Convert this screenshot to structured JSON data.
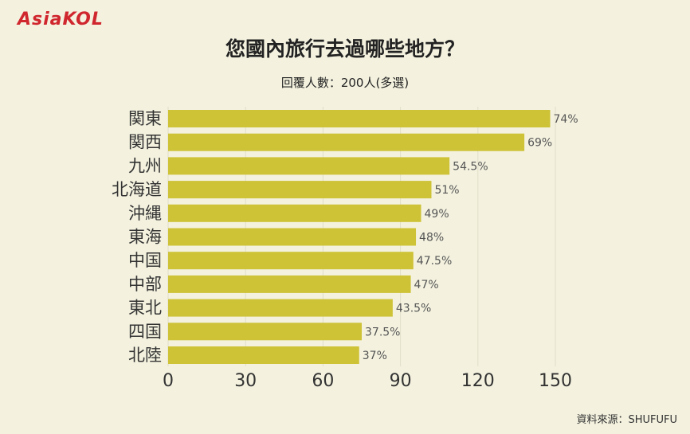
{
  "header": {
    "logo_text": "AsiaKOL",
    "title": "您國內旅行去過哪些地方？",
    "subtitle": "回覆人數：200人(多選)"
  },
  "footer": {
    "source": "資料來源：SHUFUFU"
  },
  "colors": {
    "background": "#f4f2df",
    "bar": "#cec237",
    "logo": "#d0272e",
    "grid": "#e0ddc8"
  },
  "chart_data": {
    "type": "bar",
    "orientation": "horizontal",
    "categories": [
      "関東",
      "関西",
      "九州",
      "北海道",
      "沖縄",
      "東海",
      "中国",
      "中部",
      "東北",
      "四国",
      "北陸"
    ],
    "values": [
      148,
      138,
      109,
      102,
      98,
      96,
      95,
      94,
      87,
      75,
      74
    ],
    "value_labels": [
      "74%",
      "69%",
      "54.5%",
      "51%",
      "49%",
      "48%",
      "47.5%",
      "47%",
      "43.5%",
      "37.5%",
      "37%"
    ],
    "x_ticks": [
      "0",
      "30",
      "60",
      "90",
      "120",
      "150"
    ],
    "xlim": [
      0,
      150
    ],
    "grid": true
  }
}
